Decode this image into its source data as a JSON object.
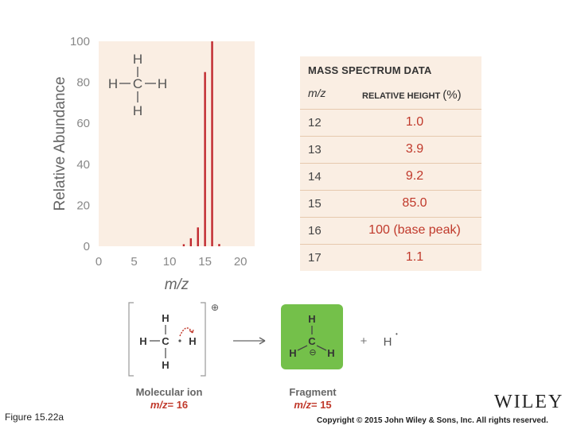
{
  "chart_data": {
    "type": "bar",
    "x": [
      12,
      13,
      14,
      15,
      16,
      17
    ],
    "values": [
      1.0,
      3.9,
      9.2,
      85.0,
      100,
      1.1
    ],
    "xlim": [
      0,
      22
    ],
    "ylim": [
      0,
      100
    ],
    "xticks": [
      0,
      5,
      10,
      15,
      20
    ],
    "yticks": [
      0,
      20,
      40,
      60,
      80,
      100
    ],
    "xlabel": "m/z",
    "ylabel": "Relative Abundance",
    "bar_color": "#c0272d",
    "plot_bg": "#faeee3",
    "grid": false
  },
  "methane": {
    "top_h": "H",
    "left_h": "H",
    "center_c": "C",
    "right_h": "H",
    "bottom_h": "H"
  },
  "table": {
    "title": "MASS SPECTRUM DATA",
    "col_mz": "m/z",
    "col_height": "RELATIVE HEIGHT",
    "col_height_unit": "(%)",
    "rows": [
      {
        "mz": "12",
        "height": "1.0"
      },
      {
        "mz": "13",
        "height": "3.9"
      },
      {
        "mz": "14",
        "height": "9.2"
      },
      {
        "mz": "15",
        "height": "85.0"
      },
      {
        "mz": "16",
        "height": "100 (base peak)"
      },
      {
        "mz": "17",
        "height": "1.1"
      }
    ]
  },
  "reaction": {
    "molecular_ion_label": "Molecular ion",
    "molecular_ion_mz_prefix": "m/z",
    "molecular_ion_mz_value": "= 16",
    "fragment_label": "Fragment",
    "fragment_mz_prefix": "m/z",
    "fragment_mz_value": "= 15",
    "charge_symbol": "⊕",
    "plus": "+",
    "h_atom": "H",
    "radical_dot": "•",
    "atom_h": "H",
    "atom_c": "C",
    "fragment_charge": "⊖",
    "highlight_color": "#74c04a"
  },
  "caption": "Figure 15.22a",
  "copyright": "Copyright © 2015 John Wiley & Sons, Inc. All rights reserved.",
  "publisher_logo": "WILEY"
}
